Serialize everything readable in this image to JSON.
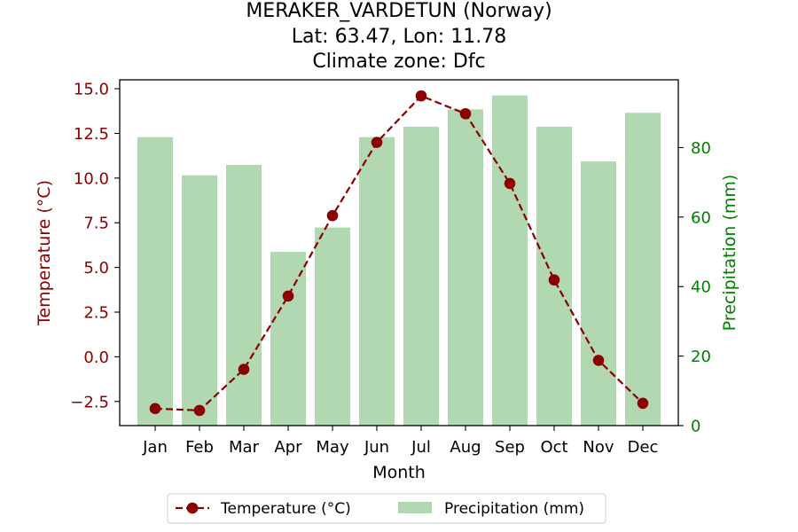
{
  "chart_data": {
    "type": "bar+line",
    "title_lines": [
      "MERAKER_VARDETUN (Norway)",
      "Lat: 63.47, Lon: 11.78",
      "Climate zone: Dfc"
    ],
    "xlabel": "Month",
    "categories": [
      "Jan",
      "Feb",
      "Mar",
      "Apr",
      "May",
      "Jun",
      "Jul",
      "Aug",
      "Sep",
      "Oct",
      "Nov",
      "Dec"
    ],
    "series": [
      {
        "name": "Temperature (°C)",
        "kind": "line",
        "axis": "left",
        "color": "#8b0000",
        "values": [
          -2.9,
          -3.0,
          -0.7,
          3.4,
          7.9,
          12.0,
          14.6,
          13.6,
          9.7,
          4.3,
          -0.2,
          -2.6
        ]
      },
      {
        "name": "Precipitation (mm)",
        "kind": "bar",
        "axis": "right",
        "color": "#b2d8b2",
        "values": [
          83,
          72,
          75,
          50,
          57,
          83,
          86,
          91,
          95,
          86,
          76,
          90
        ]
      }
    ],
    "y_left": {
      "label": "Temperature (°C)",
      "color": "#8b0000",
      "ylim": [
        -3.85,
        15.5
      ],
      "ticks": [
        -2.5,
        0.0,
        2.5,
        5.0,
        7.5,
        10.0,
        12.5,
        15.0
      ],
      "tick_labels": [
        "−2.5",
        "0.0",
        "2.5",
        "5.0",
        "7.5",
        "10.0",
        "12.5",
        "15.0"
      ]
    },
    "y_right": {
      "label": "Precipitation (mm)",
      "color": "#008000",
      "ylim": [
        0,
        99.5
      ],
      "ticks": [
        0,
        20,
        40,
        60,
        80
      ],
      "tick_labels": [
        "0",
        "20",
        "40",
        "60",
        "80"
      ]
    },
    "legend": {
      "placement": "bottom-center",
      "entries": [
        "Temperature (°C)",
        "Precipitation (mm)"
      ]
    },
    "grid": false
  }
}
